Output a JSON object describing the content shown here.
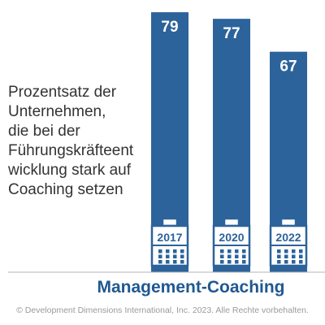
{
  "chart_data": {
    "type": "bar",
    "categories": [
      "2017",
      "2020",
      "2022"
    ],
    "values": [
      79,
      77,
      67
    ],
    "title": "",
    "xlabel": "Management-Coaching",
    "ylabel": "",
    "ylim": [
      0,
      80
    ],
    "grid": false,
    "legend": "none",
    "bar_color": "#2c639b",
    "icon": "calendar-icon",
    "description_lines": [
      "Prozentsatz der",
      "Unternehmen,",
      "die bei der",
      "Führungskräfteent",
      "wicklung stark auf",
      "Coaching setzen"
    ]
  },
  "colors": {
    "bar": "#2c639b",
    "text": "#333333",
    "heading": "#1f5891",
    "credit": "#9a9a9a"
  },
  "credit": "© Development Dimensions International, Inc. 2023. Alle Rechte vorbehalten."
}
